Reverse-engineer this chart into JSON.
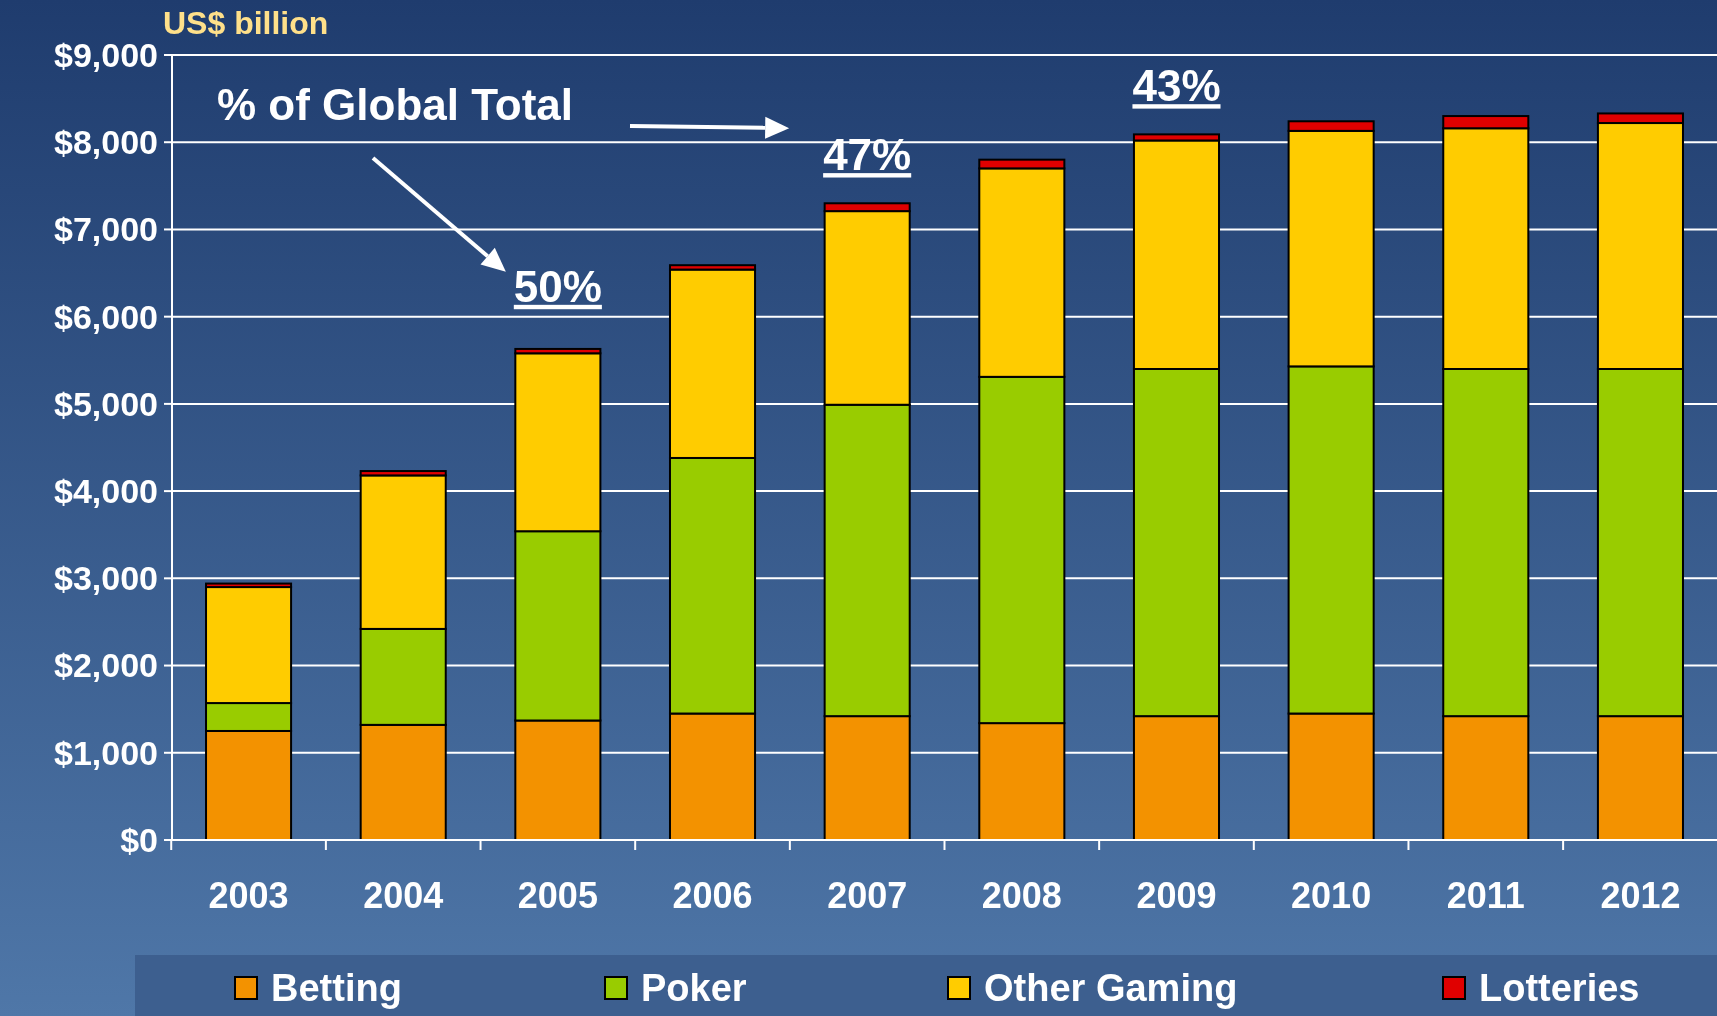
{
  "chart_data": {
    "type": "bar",
    "stacked": true,
    "ylabel": "US$ billion",
    "categories": [
      "2003",
      "2004",
      "2005",
      "2006",
      "2007",
      "2008",
      "2009",
      "2010",
      "2011",
      "2012"
    ],
    "series": [
      {
        "name": "Betting",
        "color": "#f39200",
        "values": [
          1250,
          1320,
          1370,
          1450,
          1420,
          1340,
          1420,
          1450,
          1420,
          1420
        ]
      },
      {
        "name": "Poker",
        "color": "#99cc00",
        "values": [
          320,
          1100,
          2170,
          2930,
          3570,
          3970,
          3980,
          3980,
          3980,
          3980
        ]
      },
      {
        "name": "Other Gaming",
        "color": "#ffcc00",
        "values": [
          1330,
          1760,
          2040,
          2160,
          2220,
          2390,
          2620,
          2700,
          2760,
          2820
        ]
      },
      {
        "name": "Lotteries",
        "color": "#e00000",
        "values": [
          40,
          50,
          50,
          50,
          90,
          100,
          70,
          110,
          140,
          110
        ]
      }
    ],
    "ylim": [
      0,
      9000
    ],
    "yticks": [
      {
        "value": 0,
        "label": "$0"
      },
      {
        "value": 1000,
        "label": "$1,000"
      },
      {
        "value": 2000,
        "label": "$2,000"
      },
      {
        "value": 3000,
        "label": "$3,000"
      },
      {
        "value": 4000,
        "label": "$4,000"
      },
      {
        "value": 5000,
        "label": "$5,000"
      },
      {
        "value": 6000,
        "label": "$6,000"
      },
      {
        "value": 7000,
        "label": "$7,000"
      },
      {
        "value": 8000,
        "label": "$8,000"
      },
      {
        "value": 9000,
        "label": "$9,000"
      }
    ],
    "grid": "y",
    "legend": "bottom",
    "annotations": [
      "% of Global Total",
      "50%",
      "47%",
      "43%"
    ]
  }
}
